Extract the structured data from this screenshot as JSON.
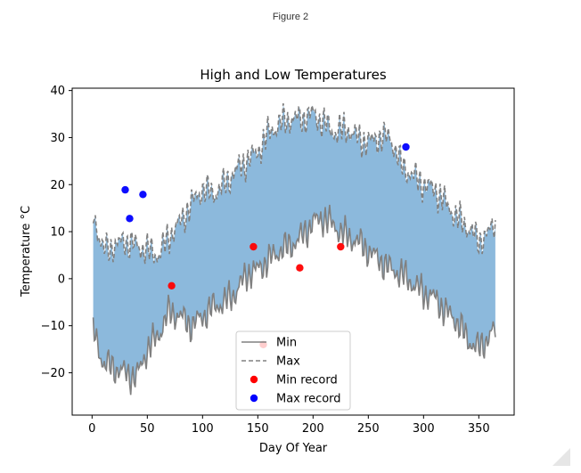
{
  "window": {
    "title": "Figure 2"
  },
  "chart_data": {
    "type": "line",
    "title": "High and Low Temperatures",
    "xlabel": "Day Of Year",
    "ylabel": "Temperature °C",
    "xlim": [
      -18,
      382
    ],
    "ylim": [
      -29,
      40.5
    ],
    "xticks": [
      0,
      50,
      100,
      150,
      200,
      250,
      300,
      350
    ],
    "yticks": [
      -20,
      -10,
      0,
      10,
      20,
      30,
      40
    ],
    "ytick_labels": [
      "−20",
      "−10",
      "0",
      "10",
      "20",
      "30",
      "40"
    ],
    "grid": false,
    "fill_between": {
      "color": "#8cb9dc"
    },
    "series": [
      {
        "name": "Min",
        "style": "solid",
        "color": "#808080",
        "x": [
          1,
          10,
          20,
          30,
          40,
          50,
          60,
          70,
          80,
          90,
          100,
          110,
          120,
          130,
          140,
          150,
          160,
          170,
          180,
          190,
          200,
          210,
          220,
          230,
          240,
          250,
          260,
          270,
          280,
          290,
          300,
          310,
          320,
          330,
          340,
          350,
          360,
          365
        ],
        "y": [
          -11,
          -18,
          -19,
          -20,
          -21,
          -15,
          -12,
          -7,
          -8,
          -10,
          -8,
          -6,
          -5,
          -3,
          1,
          2,
          4,
          6,
          7,
          9,
          12,
          13,
          11,
          9,
          8,
          6,
          4,
          2,
          1,
          -1,
          -3,
          -4,
          -7,
          -9,
          -13,
          -15,
          -12,
          -11
        ]
      },
      {
        "name": "Max",
        "style": "dashed",
        "color": "#808080",
        "x": [
          1,
          10,
          20,
          30,
          40,
          50,
          60,
          70,
          80,
          90,
          100,
          110,
          120,
          130,
          140,
          150,
          160,
          170,
          180,
          190,
          200,
          210,
          220,
          230,
          240,
          250,
          260,
          270,
          280,
          290,
          300,
          310,
          320,
          330,
          340,
          350,
          360,
          365
        ],
        "y": [
          14,
          6,
          7,
          8,
          7,
          6,
          5,
          9,
          12,
          16,
          19,
          18,
          20,
          23,
          25,
          27,
          31,
          33,
          34,
          34,
          35,
          33,
          31,
          32,
          30,
          29,
          30,
          30,
          24,
          22,
          20,
          19,
          16,
          13,
          11,
          8,
          10,
          12
        ]
      }
    ],
    "scatter": [
      {
        "name": "Min record",
        "color": "#ff0000",
        "x": [
          72,
          146,
          188,
          225,
          155
        ],
        "y": [
          -1.5,
          6.8,
          2.3,
          6.8,
          -14
        ]
      },
      {
        "name": "Max record",
        "color": "#0000ff",
        "x": [
          30,
          34,
          46,
          284
        ],
        "y": [
          18.9,
          12.8,
          17.9,
          28
        ]
      }
    ],
    "legend": {
      "placement": "lower-center",
      "entries": [
        "Min",
        "Max",
        "Min record",
        "Max record"
      ]
    }
  }
}
